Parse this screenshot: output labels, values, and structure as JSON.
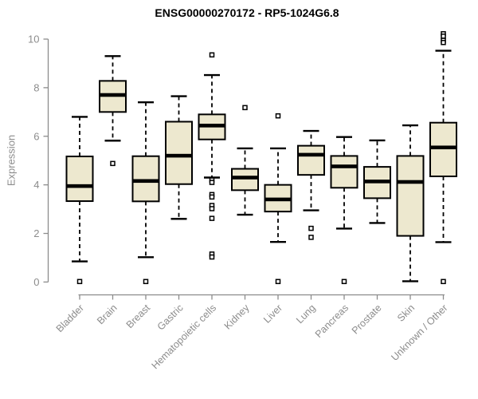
{
  "chart_data": {
    "type": "box",
    "title": "ENSG00000270172 - RP5-1024G6.8",
    "ylabel": "Expression",
    "xlabel": "",
    "yticks": [
      0,
      2,
      4,
      6,
      8,
      10
    ],
    "ylim": [
      0,
      10.3
    ],
    "grid": false,
    "legend": "none",
    "categories": [
      "Bladder",
      "Brain",
      "Breast",
      "Gastric",
      "Hematopoietic cells",
      "Kidney",
      "Liver",
      "Lung",
      "Pancreas",
      "Prostate",
      "Skin",
      "Unknown / Other"
    ],
    "series": [
      {
        "name": "Bladder",
        "whisker_low": 0.85,
        "q1": 3.33,
        "median": 3.95,
        "q3": 5.17,
        "whisker_high": 6.8,
        "outliers": [
          0.02
        ]
      },
      {
        "name": "Brain",
        "whisker_low": 5.82,
        "q1": 7.0,
        "median": 7.7,
        "q3": 8.28,
        "whisker_high": 9.3,
        "outliers": [
          4.88
        ]
      },
      {
        "name": "Breast",
        "whisker_low": 1.02,
        "q1": 3.32,
        "median": 4.16,
        "q3": 5.18,
        "whisker_high": 7.4,
        "outliers": [
          0.02
        ]
      },
      {
        "name": "Gastric",
        "whisker_low": 2.6,
        "q1": 4.03,
        "median": 5.2,
        "q3": 6.6,
        "whisker_high": 7.65,
        "outliers": []
      },
      {
        "name": "Hematopoietic cells",
        "whisker_low": 4.3,
        "q1": 5.87,
        "median": 6.44,
        "q3": 6.9,
        "whisker_high": 8.52,
        "outliers": [
          9.35,
          4.2,
          4.1,
          3.6,
          3.5,
          3.15,
          3.02,
          2.62,
          1.15,
          1.03
        ]
      },
      {
        "name": "Kidney",
        "whisker_low": 2.77,
        "q1": 3.78,
        "median": 4.3,
        "q3": 4.66,
        "whisker_high": 5.5,
        "outliers": [
          7.18
        ]
      },
      {
        "name": "Liver",
        "whisker_low": 1.65,
        "q1": 2.9,
        "median": 3.4,
        "q3": 4.0,
        "whisker_high": 5.5,
        "outliers": [
          6.84,
          0.02
        ]
      },
      {
        "name": "Lung",
        "whisker_low": 2.95,
        "q1": 4.41,
        "median": 5.24,
        "q3": 5.61,
        "whisker_high": 6.22,
        "outliers": [
          2.21,
          1.84
        ]
      },
      {
        "name": "Pancreas",
        "whisker_low": 2.2,
        "q1": 3.88,
        "median": 4.76,
        "q3": 5.19,
        "whisker_high": 5.97,
        "outliers": [
          0.02
        ]
      },
      {
        "name": "Prostate",
        "whisker_low": 2.43,
        "q1": 3.45,
        "median": 4.14,
        "q3": 4.74,
        "whisker_high": 5.83,
        "outliers": []
      },
      {
        "name": "Skin",
        "whisker_low": 0.03,
        "q1": 1.9,
        "median": 4.12,
        "q3": 5.19,
        "whisker_high": 6.45,
        "outliers": []
      },
      {
        "name": "Unknown / Other",
        "whisker_low": 1.64,
        "q1": 4.35,
        "median": 5.54,
        "q3": 6.56,
        "whisker_high": 9.52,
        "outliers": [
          10.22,
          10.12,
          9.95,
          9.86,
          0.02
        ]
      }
    ],
    "colors": {
      "box_fill": "#EDE8CF",
      "box_border": "#000000",
      "median": "#000000",
      "whisker": "#000000",
      "outlier_stroke": "#000000",
      "outlier_fill": "#FFFFFF",
      "axis": "#8C8C8C",
      "tick_label": "#8C8C8C",
      "category_label": "#8C8C8C",
      "title": "#000000",
      "background": "#FFFFFF"
    }
  }
}
